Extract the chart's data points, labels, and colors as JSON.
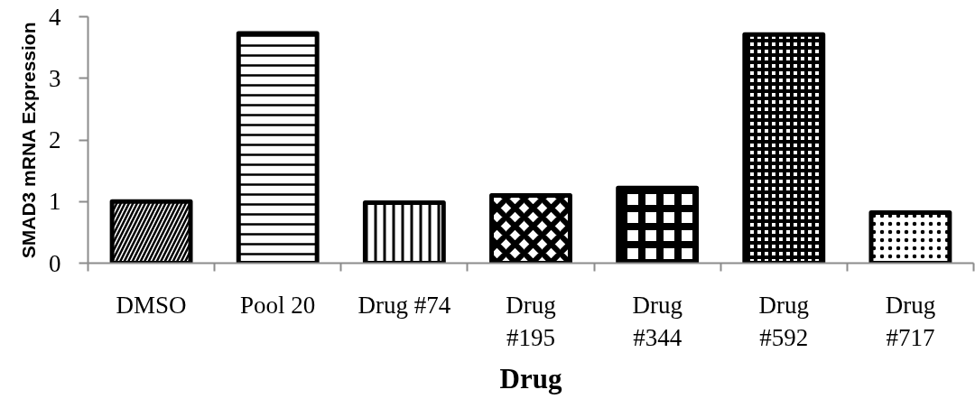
{
  "chart_data": {
    "type": "bar",
    "xlabel": "Drug",
    "ylabel": "SMAD3 mRNA Expression",
    "categories": [
      "DMSO",
      "Pool 20",
      "Drug #74",
      "Drug #195",
      "Drug #344",
      "Drug #592",
      "Drug #717"
    ],
    "values": [
      1.0,
      3.73,
      0.98,
      1.1,
      1.22,
      3.71,
      0.82
    ],
    "color": "#000000",
    "ylim": [
      0,
      4
    ],
    "yticks": [
      0,
      1,
      2,
      3,
      4
    ],
    "grid": false
  }
}
